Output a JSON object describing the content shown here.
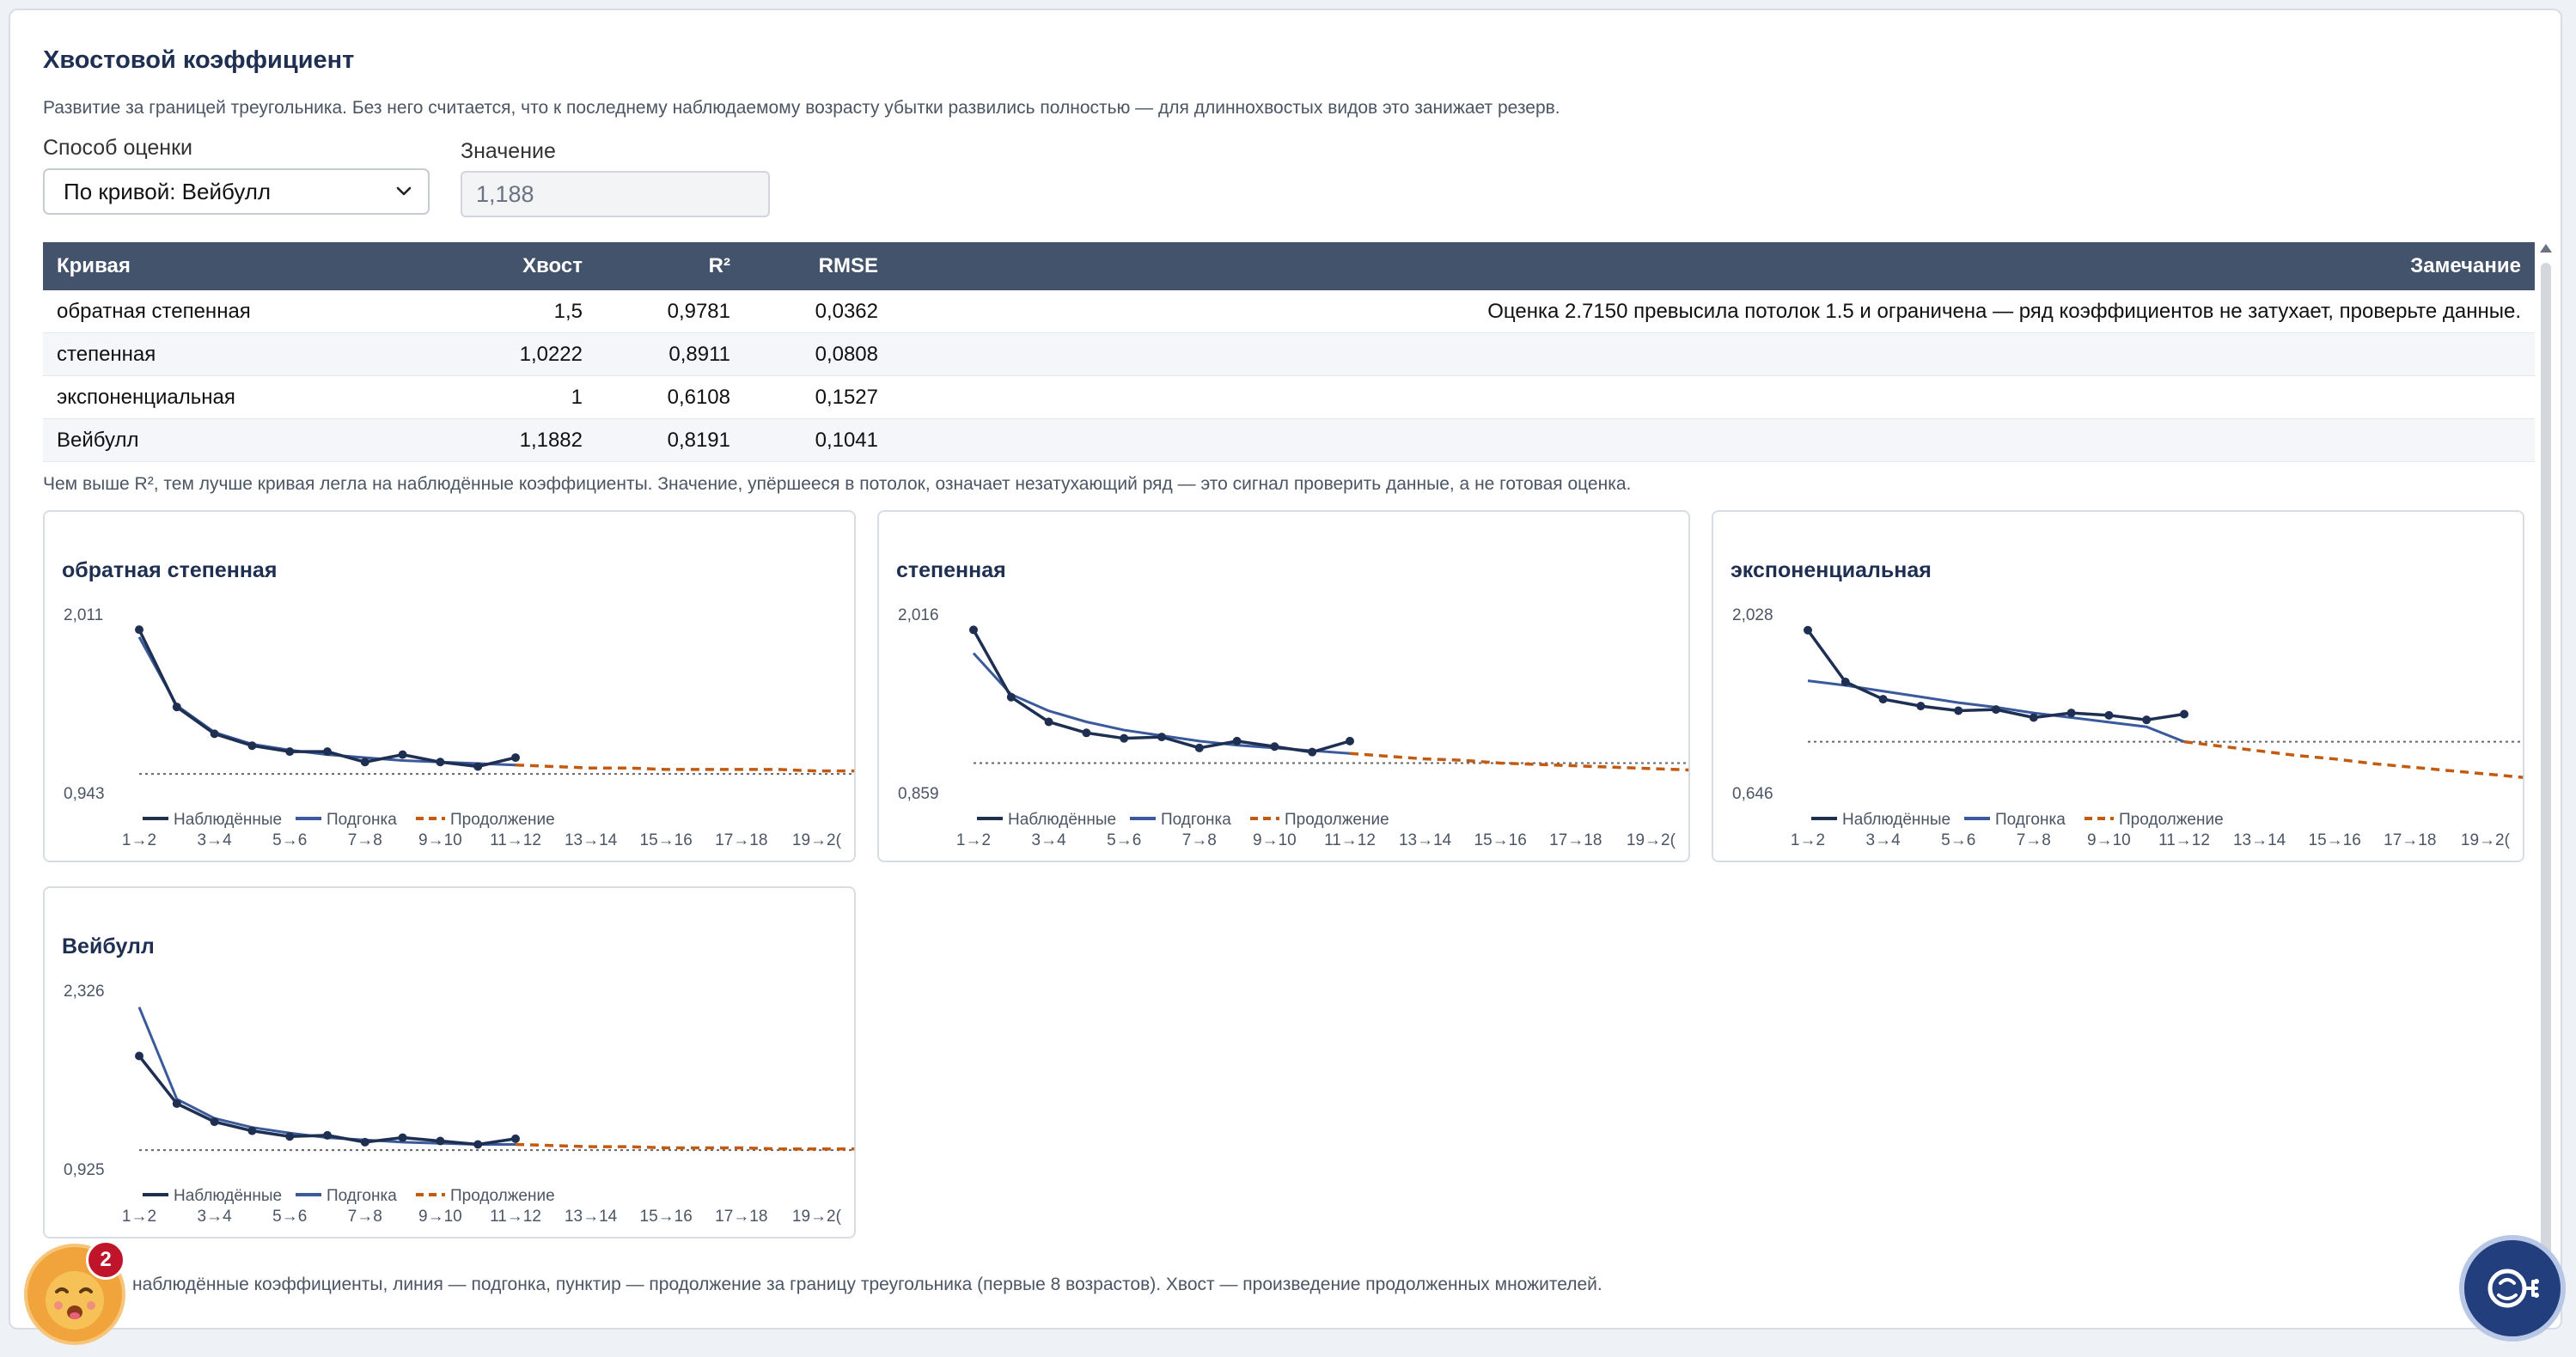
{
  "header": {
    "title": "Хвостовой коэффициент",
    "description": "Развитие за границей треугольника. Без него считается, что к последнему наблюдаемому возрасту убытки развились полностью — для длиннохвостых видов это занижает резерв."
  },
  "controls": {
    "method_label": "Способ оценки",
    "method_value": "По кривой: Вейбулл",
    "value_label": "Значение",
    "value_value": "1,188"
  },
  "table": {
    "headers": {
      "name": "Кривая",
      "tail": "Хвост",
      "r2": "R²",
      "rmse": "RMSE",
      "note": "Замечание"
    },
    "rows": [
      {
        "name": "обратная степенная",
        "tail": "1,5",
        "r2": "0,9781",
        "rmse": "0,0362",
        "note": "Оценка 2.7150 превысила потолок 1.5 и ограничена — ряд коэффициентов не затухает, проверьте данные."
      },
      {
        "name": "степенная",
        "tail": "1,0222",
        "r2": "0,8911",
        "rmse": "0,0808",
        "note": ""
      },
      {
        "name": "экспоненциальная",
        "tail": "1",
        "r2": "0,6108",
        "rmse": "0,1527",
        "note": ""
      },
      {
        "name": "Вейбулл",
        "tail": "1,1882",
        "r2": "0,8191",
        "rmse": "0,1041",
        "note": ""
      }
    ]
  },
  "table_note": "Чем выше R², тем лучше кривая легла на наблюдённые коэффициенты. Значение, упёршееся в потолок, означает незатухающий ряд — это сигнал проверить данные, а не готовая оценка.",
  "legend": {
    "observed": "Наблюдённые",
    "fit": "Подгонка",
    "extension": "Продолжение"
  },
  "x_tick_labels": [
    "1→2",
    "3→4",
    "5→6",
    "7→8",
    "9→10",
    "11→12",
    "13→14",
    "15→16",
    "17→18",
    "19→2("
  ],
  "colors": {
    "observed": "#1e2f52",
    "fit": "#3a5a9b",
    "extension": "#c25a12",
    "baseline": "#666666"
  },
  "chart_data": [
    {
      "type": "line",
      "title": "обратная степенная",
      "y_tick_labels": [
        "2,011",
        "0,943"
      ],
      "ylim": [
        0.943,
        2.011
      ],
      "baseline": 1.0,
      "observed": [
        1.97,
        1.45,
        1.27,
        1.19,
        1.15,
        1.15,
        1.08,
        1.13,
        1.08,
        1.05,
        1.11
      ],
      "fit": [
        1.92,
        1.46,
        1.28,
        1.2,
        1.16,
        1.13,
        1.11,
        1.09,
        1.08,
        1.07,
        1.06
      ],
      "extension": [
        1.06,
        1.05,
        1.04,
        1.04,
        1.03,
        1.03,
        1.03,
        1.03,
        1.02,
        1.02
      ]
    },
    {
      "type": "line",
      "title": "степенная",
      "y_tick_labels": [
        "2,016",
        "0,859"
      ],
      "ylim": [
        0.859,
        2.016
      ],
      "baseline": 1.0,
      "observed": [
        1.97,
        1.48,
        1.3,
        1.22,
        1.18,
        1.19,
        1.11,
        1.16,
        1.12,
        1.08,
        1.16
      ],
      "fit": [
        1.8,
        1.5,
        1.38,
        1.3,
        1.24,
        1.2,
        1.16,
        1.13,
        1.11,
        1.09,
        1.07
      ],
      "extension": [
        1.07,
        1.05,
        1.03,
        1.02,
        1.0,
        0.99,
        0.98,
        0.97,
        0.96,
        0.95
      ]
    },
    {
      "type": "line",
      "title": "экспоненциальная",
      "y_tick_labels": [
        "2,028",
        "0,646"
      ],
      "ylim": [
        0.646,
        2.028
      ],
      "baseline": 1.0,
      "observed": [
        1.97,
        1.52,
        1.37,
        1.31,
        1.27,
        1.28,
        1.21,
        1.25,
        1.23,
        1.19,
        1.24
      ],
      "fit": [
        1.53,
        1.49,
        1.44,
        1.39,
        1.34,
        1.3,
        1.25,
        1.21,
        1.17,
        1.13,
        1.0
      ],
      "extension": [
        1.0,
        0.96,
        0.92,
        0.88,
        0.85,
        0.81,
        0.78,
        0.75,
        0.72,
        0.69
      ]
    },
    {
      "type": "line",
      "title": "Вейбулл",
      "y_tick_labels": [
        "2,326",
        "0,925"
      ],
      "ylim": [
        0.925,
        2.326
      ],
      "baseline": 1.0,
      "observed": [
        1.83,
        1.41,
        1.25,
        1.17,
        1.12,
        1.13,
        1.07,
        1.11,
        1.08,
        1.05,
        1.1
      ],
      "fit": [
        2.26,
        1.45,
        1.28,
        1.2,
        1.15,
        1.11,
        1.09,
        1.07,
        1.06,
        1.05,
        1.05
      ],
      "extension": [
        1.05,
        1.04,
        1.03,
        1.03,
        1.02,
        1.02,
        1.02,
        1.01,
        1.01,
        1.01
      ]
    }
  ],
  "footer_note": "наблюдённые коэффициенты, линия — подгонка, пунктир — продолжение за границу треугольника (первые 8 возрастов). Хвост — произведение продолженных множителей.",
  "notifications": {
    "count": "2"
  },
  "icons": {
    "select_chevron": "chevron-down-icon",
    "avatar": "smiley-avatar-icon",
    "assistant": "assistant-robot-icon",
    "scroll_up": "scroll-up-arrow-icon"
  }
}
